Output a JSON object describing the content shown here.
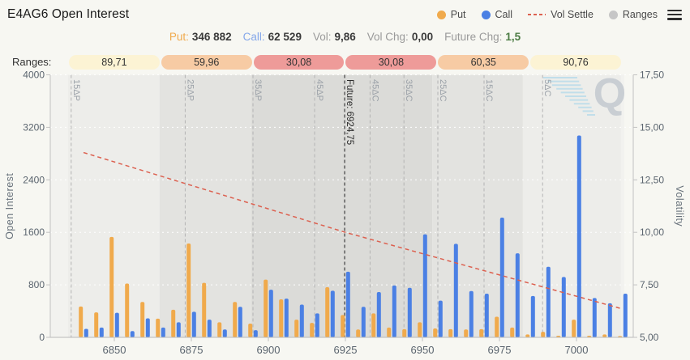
{
  "header": {
    "title": "E4AG6 Open Interest",
    "legend": [
      {
        "id": "put",
        "label": "Put",
        "marker": "dot",
        "color": "#f0aa4c"
      },
      {
        "id": "call",
        "label": "Call",
        "marker": "dot",
        "color": "#4b80e4"
      },
      {
        "id": "vol-settle",
        "label": "Vol Settle",
        "marker": "dash",
        "color": "#dc604f"
      },
      {
        "id": "ranges",
        "label": "Ranges",
        "marker": "dot",
        "color": "#c6c6c6"
      }
    ]
  },
  "stats": [
    {
      "label": "Put:",
      "value": "346 882",
      "label_color": "#f0aa4c"
    },
    {
      "label": "Call:",
      "value": "62 529",
      "label_color": "#84a7ea"
    },
    {
      "label": "Vol:",
      "value": "9,86",
      "label_color": "#9a9a9a"
    },
    {
      "label": "Vol Chg:",
      "value": "0,00",
      "label_color": "#9a9a9a"
    },
    {
      "label": "Future Chg:",
      "value": "1,5",
      "label_color": "#9a9a9a",
      "value_color": "#4c7c44"
    }
  ],
  "ranges_row": {
    "label": "Ranges:",
    "segments": [
      {
        "value": "89,71",
        "color": "#fcf3d4"
      },
      {
        "value": "59,96",
        "color": "#f7cba4"
      },
      {
        "value": "30,08",
        "color": "#ee9b99"
      },
      {
        "value": "30,08",
        "color": "#ee9b99"
      },
      {
        "value": "60,35",
        "color": "#f7cba4"
      },
      {
        "value": "90,76",
        "color": "#fcf3d4"
      }
    ]
  },
  "watermark": "Q",
  "chart_data": {
    "type": "bar+line",
    "title": "E4AG6 Open Interest",
    "xlabel": "",
    "ylabel_left": "Open Interest",
    "ylabel_right": "Volatility",
    "ylim_left": [
      0,
      4000
    ],
    "ylim_right": [
      5.0,
      17.5
    ],
    "yticks_left": [
      "0",
      "800",
      "1600",
      "2400",
      "3200",
      "4000"
    ],
    "yticks_left_values": [
      0,
      800,
      1600,
      2400,
      3200,
      4000
    ],
    "yticks_right": [
      "5,00",
      "7,50",
      "10,00",
      "12,50",
      "15,00",
      "17,50"
    ],
    "yticks_right_values": [
      5.0,
      7.5,
      10.0,
      12.5,
      15.0,
      17.5
    ],
    "xticks": [
      6850,
      6875,
      6900,
      6925,
      6950,
      6975,
      7000
    ],
    "grid": true,
    "legend_position": "top-right",
    "strikes": [
      6840,
      6845,
      6850,
      6855,
      6860,
      6865,
      6870,
      6875,
      6880,
      6885,
      6890,
      6895,
      6900,
      6905,
      6910,
      6915,
      6920,
      6925,
      6930,
      6935,
      6940,
      6945,
      6950,
      6955,
      6960,
      6965,
      6970,
      6975,
      6980,
      6985,
      6990,
      6995,
      7000,
      7005,
      7010,
      7015
    ],
    "series": [
      {
        "name": "Put",
        "color": "#f0aa4c",
        "values": [
          470,
          380,
          1530,
          820,
          540,
          285,
          420,
          1430,
          830,
          230,
          540,
          210,
          880,
          580,
          270,
          220,
          765,
          340,
          120,
          365,
          150,
          125,
          230,
          135,
          125,
          120,
          125,
          315,
          150,
          45,
          85,
          25,
          270,
          25,
          45,
          20
        ]
      },
      {
        "name": "Call",
        "color": "#4b80e4",
        "values": [
          130,
          150,
          375,
          95,
          290,
          150,
          230,
          390,
          270,
          120,
          465,
          110,
          725,
          590,
          500,
          365,
          710,
          1000,
          465,
          690,
          790,
          755,
          1570,
          560,
          1425,
          705,
          665,
          1825,
          1280,
          630,
          1075,
          920,
          3075,
          600,
          520,
          665
        ]
      }
    ],
    "vol_settle": {
      "name": "Vol Settle",
      "color": "#dc604f",
      "style": "dashed",
      "points": [
        {
          "strike": 6840,
          "vol": 13.8
        },
        {
          "strike": 6925,
          "vol": 10.0
        },
        {
          "strike": 7015,
          "vol": 6.35
        }
      ]
    },
    "future": {
      "label": "Future: 6924,75",
      "strike": 6924.75
    },
    "delta_lines": [
      {
        "label": "15ΔP",
        "strike": 6836
      },
      {
        "label": "25ΔP",
        "strike": 6873
      },
      {
        "label": "35ΔP",
        "strike": 6895
      },
      {
        "label": "45ΔP",
        "strike": 6915
      },
      {
        "label": "45ΔC",
        "strike": 6933
      },
      {
        "label": "35ΔC",
        "strike": 6944
      },
      {
        "label": "25ΔC",
        "strike": 6955
      },
      {
        "label": "15ΔC",
        "strike": 6970
      },
      {
        "label": "5ΔC",
        "strike": 6989
      }
    ],
    "bands": [
      {
        "from": 6835.0,
        "to": 6864.7,
        "color": "#ededea"
      },
      {
        "from": 6864.7,
        "to": 6894.5,
        "color": "#e3e3e0"
      },
      {
        "from": 6894.5,
        "to": 6923.7,
        "color": "#dbdbd8"
      },
      {
        "from": 6923.7,
        "to": 6953.2,
        "color": "#dbdbd8"
      },
      {
        "from": 6953.2,
        "to": 6982.6,
        "color": "#e3e3e0"
      },
      {
        "from": 6982.6,
        "to": 7014.4,
        "color": "#ededea"
      }
    ]
  }
}
